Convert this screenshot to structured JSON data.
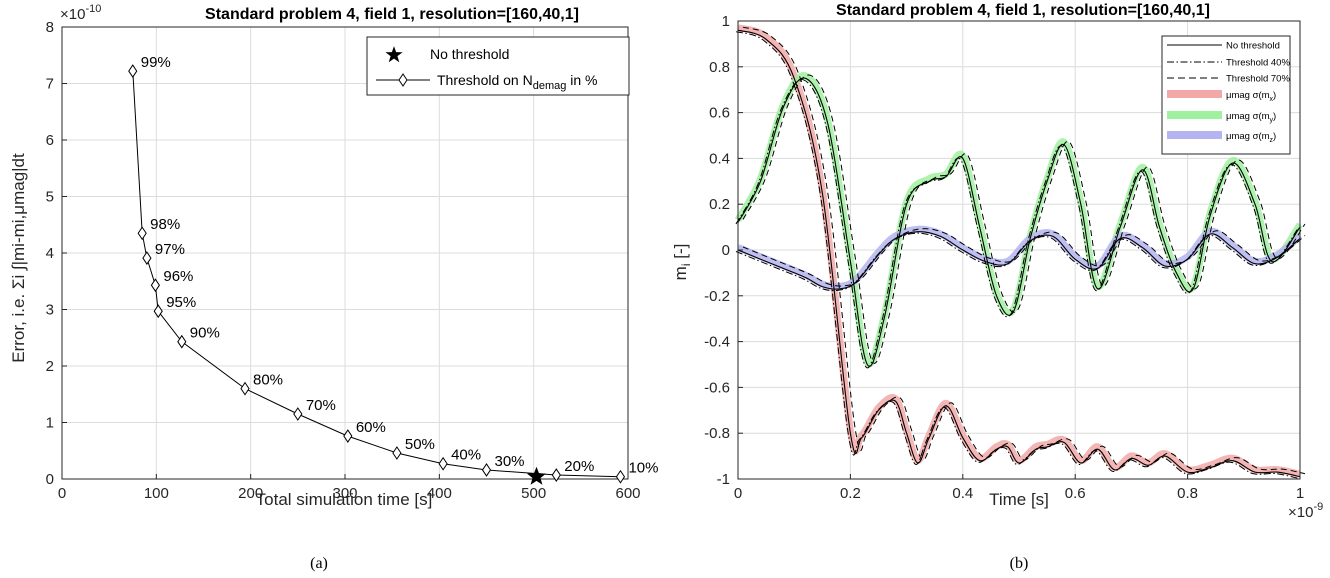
{
  "chart_data": [
    {
      "type": "scatter",
      "panel": "(a)",
      "title": "Standard problem 4, field 1, resolution=[160,40,1]",
      "exponent_label": "×10",
      "exponent_value": "-10",
      "xlabel": "Total simulation time [s]",
      "ylabel": "Error, i.e. Σi ∫|mi-mi,μmag|dt",
      "xlim": [
        0,
        600
      ],
      "ylim": [
        0,
        8
      ],
      "xticks": [
        0,
        100,
        200,
        300,
        400,
        500,
        600
      ],
      "yticks": [
        0,
        1,
        2,
        3,
        4,
        5,
        6,
        7,
        8
      ],
      "grid": true,
      "legend_placement": "top-right",
      "legend": [
        "No threshold",
        "Threshold on N",
        "demag",
        " in %"
      ],
      "series": [
        {
          "name": "Threshold on N_demag in %",
          "marker": "diamond",
          "points": [
            {
              "x": 75,
              "y": 7.22,
              "label": "99%"
            },
            {
              "x": 85,
              "y": 4.35,
              "label": "98%"
            },
            {
              "x": 90,
              "y": 3.91,
              "label": "97%"
            },
            {
              "x": 99,
              "y": 3.43,
              "label": "96%"
            },
            {
              "x": 102,
              "y": 2.97,
              "label": "95%"
            },
            {
              "x": 127,
              "y": 2.43,
              "label": "90%"
            },
            {
              "x": 194,
              "y": 1.6,
              "label": "80%"
            },
            {
              "x": 250,
              "y": 1.15,
              "label": "70%"
            },
            {
              "x": 303,
              "y": 0.76,
              "label": "60%"
            },
            {
              "x": 355,
              "y": 0.46,
              "label": "50%"
            },
            {
              "x": 404,
              "y": 0.27,
              "label": "40%"
            },
            {
              "x": 450,
              "y": 0.16,
              "label": "30%"
            },
            {
              "x": 524,
              "y": 0.07,
              "label": "20%"
            },
            {
              "x": 592,
              "y": 0.04,
              "label": "10%"
            }
          ]
        },
        {
          "name": "No threshold",
          "marker": "star",
          "points": [
            {
              "x": 503,
              "y": 0.04
            }
          ]
        }
      ]
    },
    {
      "type": "line",
      "panel": "(b)",
      "title": "Standard problem 4, field 1, resolution=[160,40,1]",
      "xlabel": "Time [s]",
      "ylabel": "m",
      "ylabel_sub": "i",
      "ylabel_unit": " [-]",
      "x_exponent_label": "×10",
      "x_exponent_value": "-9",
      "xlim": [
        0,
        1e-09
      ],
      "ylim": [
        -1,
        1
      ],
      "xticks": [
        0,
        0.2,
        0.4,
        0.6,
        0.8,
        1
      ],
      "yticks": [
        1,
        0.8,
        0.6,
        0.4,
        0.2,
        0,
        -0.2,
        -0.4,
        -0.6,
        -0.8,
        -1
      ],
      "grid": true,
      "legend_placement": "top-right",
      "legend": [
        {
          "text": "No threshold",
          "style": "solid"
        },
        {
          "text": "Threshold 40%",
          "style": "dashdot"
        },
        {
          "text": "Threshold 70%",
          "style": "dashed"
        },
        {
          "text": "μmag σ(m",
          "sub": "x",
          "end": ")",
          "color": "#f2a8a8"
        },
        {
          "text": "μmag σ(m",
          "sub": "y",
          "end": ")",
          "color": "#9ff09f"
        },
        {
          "text": "μmag σ(m",
          "sub": "z",
          "end": ")",
          "color": "#b4b4f0"
        }
      ],
      "series": [
        {
          "name": "m_x",
          "band_color": "#f2a8a8",
          "x": [
            0,
            0.05,
            0.1,
            0.15,
            0.2,
            0.22,
            0.25,
            0.28,
            0.3,
            0.32,
            0.34,
            0.37,
            0.4,
            0.43,
            0.46,
            0.48,
            0.5,
            0.53,
            0.55,
            0.58,
            0.61,
            0.64,
            0.67,
            0.7,
            0.73,
            0.76,
            0.8,
            0.84,
            0.88,
            0.92,
            0.96,
            1.0
          ],
          "y": [
            0.96,
            0.92,
            0.75,
            0.25,
            -0.8,
            -0.82,
            -0.7,
            -0.66,
            -0.8,
            -0.93,
            -0.82,
            -0.68,
            -0.82,
            -0.92,
            -0.87,
            -0.86,
            -0.93,
            -0.87,
            -0.86,
            -0.84,
            -0.93,
            -0.87,
            -0.96,
            -0.91,
            -0.94,
            -0.9,
            -0.97,
            -0.95,
            -0.92,
            -0.97,
            -0.97,
            -0.99
          ]
        },
        {
          "name": "m_y",
          "band_color": "#9ff09f",
          "x": [
            0,
            0.04,
            0.08,
            0.12,
            0.16,
            0.2,
            0.23,
            0.26,
            0.3,
            0.34,
            0.37,
            0.4,
            0.43,
            0.46,
            0.49,
            0.52,
            0.55,
            0.58,
            0.61,
            0.64,
            0.68,
            0.72,
            0.75,
            0.78,
            0.81,
            0.84,
            0.88,
            0.92,
            0.95,
            1.0
          ],
          "y": [
            0.12,
            0.3,
            0.62,
            0.75,
            0.55,
            -0.05,
            -0.5,
            -0.3,
            0.2,
            0.3,
            0.32,
            0.4,
            0.1,
            -0.2,
            -0.27,
            0.05,
            0.3,
            0.46,
            0.2,
            -0.17,
            0.1,
            0.35,
            0.1,
            -0.1,
            -0.17,
            0.15,
            0.38,
            0.2,
            -0.05,
            0.1
          ]
        },
        {
          "name": "m_z",
          "band_color": "#b4b4f0",
          "x": [
            0,
            0.04,
            0.08,
            0.12,
            0.15,
            0.18,
            0.21,
            0.25,
            0.28,
            0.32,
            0.36,
            0.4,
            0.44,
            0.48,
            0.52,
            0.56,
            0.6,
            0.64,
            0.68,
            0.72,
            0.76,
            0.8,
            0.84,
            0.88,
            0.92,
            0.96,
            1.0
          ],
          "y": [
            0.0,
            -0.04,
            -0.08,
            -0.12,
            -0.16,
            -0.17,
            -0.14,
            -0.02,
            0.05,
            0.08,
            0.06,
            0.0,
            -0.05,
            -0.06,
            0.04,
            0.06,
            -0.04,
            -0.08,
            0.05,
            0.01,
            -0.07,
            -0.04,
            0.07,
            0.01,
            -0.06,
            -0.03,
            0.05
          ]
        }
      ]
    }
  ],
  "captions": {
    "a": "(a)",
    "b": "(b)"
  }
}
